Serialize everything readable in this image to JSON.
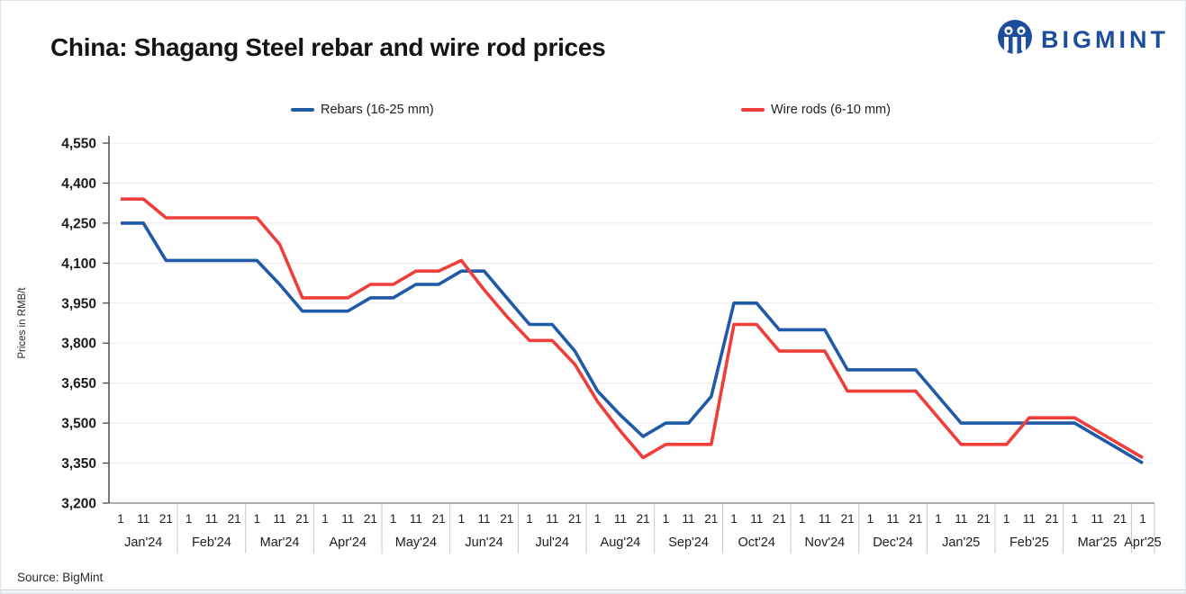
{
  "header": {
    "title": "China: Shagang Steel rebar and wire rod prices",
    "logo_text": "BIGMINT",
    "logo_color": "#1d4e9e"
  },
  "footer": {
    "source": "Source: BigMint"
  },
  "chart_data": {
    "type": "line",
    "title": "China: Shagang Steel rebar and wire rod prices",
    "xlabel": "",
    "ylabel": "Prices in RMB/t",
    "ylim": [
      3200,
      4550
    ],
    "ytick_step": 150,
    "ytick_labels": [
      "3,200",
      "3,350",
      "3,500",
      "3,650",
      "3,800",
      "3,950",
      "4,100",
      "4,250",
      "4,400",
      "4,550"
    ],
    "grid": true,
    "legend_position": "top",
    "months": [
      {
        "label": "Jan'24",
        "days": [
          "1",
          "11",
          "21"
        ]
      },
      {
        "label": "Feb'24",
        "days": [
          "1",
          "11",
          "21"
        ]
      },
      {
        "label": "Mar'24",
        "days": [
          "1",
          "11",
          "21"
        ]
      },
      {
        "label": "Apr'24",
        "days": [
          "1",
          "11",
          "21"
        ]
      },
      {
        "label": "May'24",
        "days": [
          "1",
          "11",
          "21"
        ]
      },
      {
        "label": "Jun'24",
        "days": [
          "1",
          "11",
          "21"
        ]
      },
      {
        "label": "Jul'24",
        "days": [
          "1",
          "11",
          "21"
        ]
      },
      {
        "label": "Aug'24",
        "days": [
          "1",
          "11",
          "21"
        ]
      },
      {
        "label": "Sep'24",
        "days": [
          "1",
          "11",
          "21"
        ]
      },
      {
        "label": "Oct'24",
        "days": [
          "1",
          "11",
          "21"
        ]
      },
      {
        "label": "Nov'24",
        "days": [
          "1",
          "11",
          "21"
        ]
      },
      {
        "label": "Dec'24",
        "days": [
          "1",
          "11",
          "21"
        ]
      },
      {
        "label": "Jan'25",
        "days": [
          "1",
          "11",
          "21"
        ]
      },
      {
        "label": "Feb'25",
        "days": [
          "1",
          "11",
          "21"
        ]
      },
      {
        "label": "Mar'25",
        "days": [
          "1",
          "11",
          "21"
        ]
      },
      {
        "label": "Apr'25",
        "days": [
          "1"
        ]
      }
    ],
    "series": [
      {
        "name": "Rebars (16-25 mm)",
        "color": "#1f5aa8",
        "values": [
          4250,
          4250,
          4110,
          4110,
          4110,
          4110,
          4110,
          4020,
          3920,
          3920,
          3920,
          3970,
          3970,
          4020,
          4020,
          4070,
          4070,
          3970,
          3870,
          3870,
          3770,
          3620,
          3530,
          3450,
          3500,
          3500,
          3600,
          3950,
          3950,
          3850,
          3850,
          3850,
          3700,
          3700,
          3700,
          3700,
          3600,
          3500,
          3500,
          3500,
          3500,
          3500,
          3500,
          3450,
          3400,
          3350
        ]
      },
      {
        "name": "Wire rods (6-10 mm)",
        "color": "#ef3e3a",
        "values": [
          4340,
          4340,
          4270,
          4270,
          4270,
          4270,
          4270,
          4170,
          3970,
          3970,
          3970,
          4020,
          4020,
          4070,
          4070,
          4110,
          4000,
          3900,
          3810,
          3810,
          3720,
          3580,
          3470,
          3370,
          3420,
          3420,
          3420,
          3870,
          3870,
          3770,
          3770,
          3770,
          3620,
          3620,
          3620,
          3620,
          3520,
          3420,
          3420,
          3420,
          3520,
          3520,
          3520,
          3470,
          3420,
          3370
        ]
      }
    ]
  }
}
